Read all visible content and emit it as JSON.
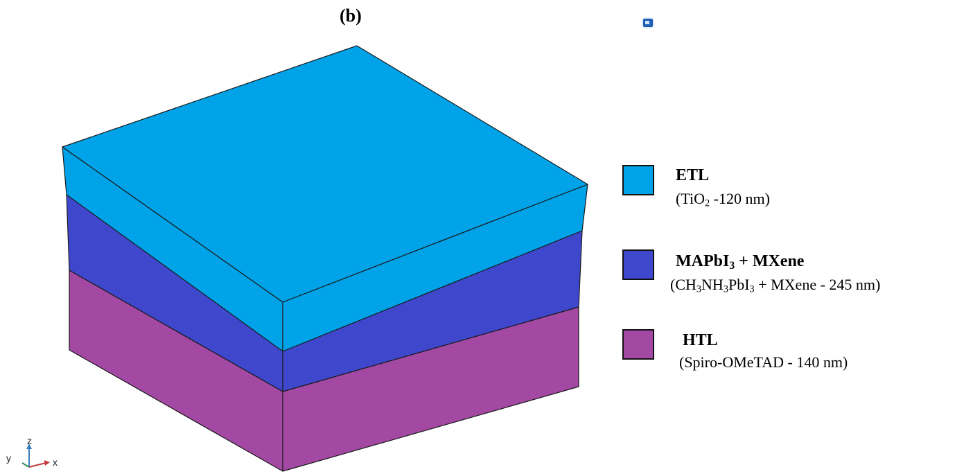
{
  "panel_label": "(b)",
  "layers": [
    {
      "key": "etl",
      "title": "ETL",
      "subtitle_parts": [
        "(TiO",
        "2",
        " -120 nm)"
      ],
      "color": "#00A3E8"
    },
    {
      "key": "mxene",
      "title_parts": [
        "MAPbI",
        "3",
        " + MXene"
      ],
      "subtitle_parts": [
        "(CH",
        "3",
        "NH",
        "3",
        "PbI",
        "3",
        " + MXene  - 245 nm)"
      ],
      "color": "#3F48CC"
    },
    {
      "key": "htl",
      "title": "HTL",
      "subtitle_parts": [
        "(Spiro-OMeTAD - 140 nm)"
      ],
      "color": "#A349A4"
    }
  ],
  "axes": {
    "z": "z",
    "y": "y",
    "x": "x"
  }
}
